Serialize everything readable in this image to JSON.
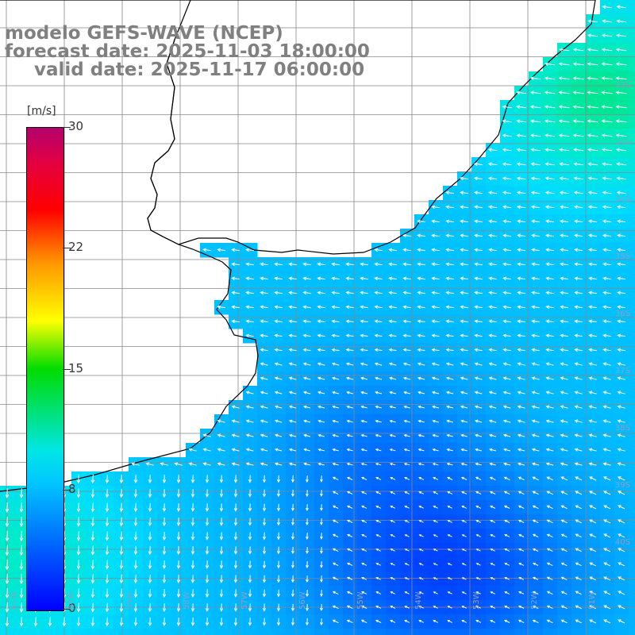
{
  "title": {
    "line1": "modelo GEFS-WAVE (NCEP)",
    "line2": "forecast date: 2025-11-03 18:00:00",
    "line3": "valid date: 2025-11-17 06:00:00"
  },
  "colorbar": {
    "unit": "[m/s]",
    "ticks": [
      "30",
      "22",
      "15",
      "8",
      "0"
    ],
    "tick_values": [
      30,
      22,
      15,
      8,
      0
    ],
    "min": 0,
    "max": 30
  },
  "lat_labels": [
    "33S",
    "34S",
    "35S",
    "36S",
    "37S",
    "38S",
    "39S",
    "40S"
  ],
  "lon_labels": [
    "61W",
    "60W",
    "59W",
    "58W",
    "57W",
    "56W",
    "55W",
    "54W",
    "53W",
    "52W",
    "51W"
  ],
  "colors": {
    "land": "#ffffff",
    "grid": "#888888",
    "coast": "#000000",
    "arrow": "#ffffff",
    "label": "#8aa0c8"
  }
}
